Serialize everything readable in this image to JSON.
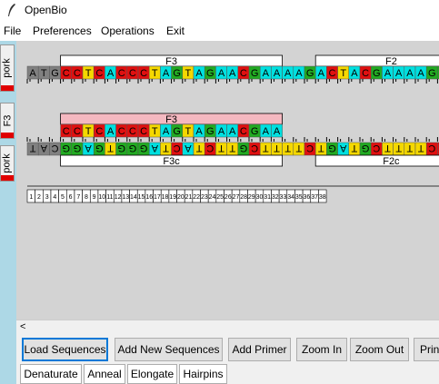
{
  "window": {
    "title": "OpenBio"
  },
  "menu": [
    "File",
    "Preferences",
    "Operations",
    "Exit"
  ],
  "side_tabs": [
    "pork",
    "F3",
    "pork"
  ],
  "colors": {
    "A": "#00e0e0",
    "C": "#e01010",
    "G": "#22aa22",
    "T": "#f5d800",
    "N": "#808080",
    "primer_fill": "#f4b8c0",
    "sidebar": "#add8e6",
    "canvas": "#d3d3d3"
  },
  "top_strand": "ATGCCTCACCCTAGTAGAACGAAAAGACTACGAAAAGG",
  "top_strand_highlight_from": 3,
  "primer_strand": "CCTCACCCTAGTAGAACGAA",
  "bottom_strand": "TACGGAGTGGGATCATCTTGCTTTTCTGATGCTTTTCC",
  "bottom_strand_highlight_from": 3,
  "labels": {
    "f3": "F3",
    "f2": "F2",
    "primer_f3": "F3",
    "f3c": "F3c",
    "f2c": "F2c"
  },
  "ruler": [
    "1",
    "2",
    "3",
    "4",
    "5",
    "6",
    "7",
    "8",
    "9",
    "10",
    "11",
    "12",
    "13",
    "14",
    "15",
    "16",
    "17",
    "18",
    "19",
    "20",
    "21",
    "22",
    "23",
    "24",
    "25",
    "26",
    "27",
    "28",
    "29",
    "30",
    "31",
    "32",
    "33",
    "34",
    "35",
    "36",
    "37",
    "38"
  ],
  "toolbar": [
    "Load Sequences",
    "Add New Sequences",
    "Add Primer",
    "Zoom In",
    "Zoom Out",
    "Print"
  ],
  "operations": [
    "Denaturate",
    "Anneal",
    "Elongate",
    "Hairpins"
  ],
  "scroll_left": "<"
}
